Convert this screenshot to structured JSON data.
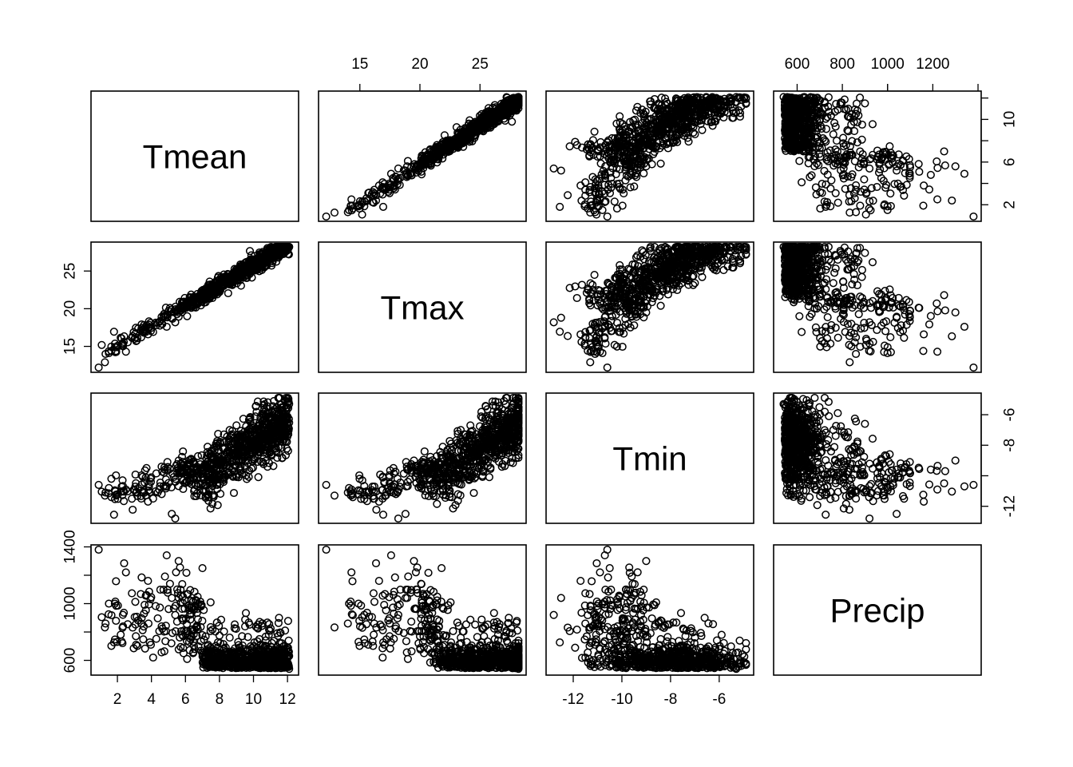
{
  "chart_data": {
    "type": "scatter",
    "kind": "scatterplot-matrix",
    "grid": false,
    "variables": [
      {
        "name": "Tmean",
        "range": [
          0.9,
          12.2
        ],
        "ticks": [
          2,
          4,
          6,
          8,
          10,
          12
        ]
      },
      {
        "name": "Tmax",
        "range": [
          12.2,
          28.2
        ],
        "ticks": [
          15,
          20,
          25
        ]
      },
      {
        "name": "Tmin",
        "range": [
          -12.8,
          -4.9
        ],
        "ticks": [
          -12,
          -10,
          -8,
          -6
        ]
      },
      {
        "name": "Precip",
        "range": [
          530,
          1380
        ],
        "ticks": [
          600,
          800,
          1000,
          1200
        ],
        "ticks_left": [
          600,
          1000,
          1400
        ]
      }
    ],
    "axis_placement": {
      "top_tick_labels": [
        "Tmax",
        "Precip"
      ],
      "bottom_tick_labels": [
        "Tmean",
        "Tmin"
      ],
      "left_tick_labels": [
        "Tmax",
        "Precip"
      ],
      "right_tick_labels": [
        "Tmean",
        "Tmin"
      ]
    },
    "ticks_right_tmean": [
      2,
      6,
      10
    ],
    "ticks_right_tmin": [
      -12,
      -8,
      -6
    ],
    "observations_sampled": [
      {
        "Tmean": 0.9,
        "Tmax": 12.2,
        "Tmin": -10.6,
        "Precip": 1380
      },
      {
        "Tmean": 1.3,
        "Tmax": 14.0,
        "Tmin": -11.1,
        "Precip": 860
      },
      {
        "Tmean": 1.5,
        "Tmax": 14.1,
        "Tmin": -10.8,
        "Precip": 1000
      },
      {
        "Tmean": 2.3,
        "Tmax": 15.2,
        "Tmin": -10.3,
        "Precip": 830
      },
      {
        "Tmean": 2.5,
        "Tmax": 14.3,
        "Tmin": -10.9,
        "Precip": 1220
      },
      {
        "Tmean": 3.1,
        "Tmax": 15.7,
        "Tmin": -11.1,
        "Precip": 710
      },
      {
        "Tmean": 3.4,
        "Tmax": 16.2,
        "Tmin": -11.5,
        "Precip": 860
      },
      {
        "Tmean": 3.8,
        "Tmax": 16.6,
        "Tmin": -11.7,
        "Precip": 1160
      },
      {
        "Tmean": 4.1,
        "Tmax": 16.9,
        "Tmin": -11.5,
        "Precip": 620
      },
      {
        "Tmean": 4.6,
        "Tmax": 18.0,
        "Tmin": -11.2,
        "Precip": 840
      },
      {
        "Tmean": 4.9,
        "Tmax": 17.6,
        "Tmin": -10.7,
        "Precip": 1340
      },
      {
        "Tmean": 5.2,
        "Tmax": 18.8,
        "Tmin": -12.5,
        "Precip": 1040
      },
      {
        "Tmean": 5.4,
        "Tmax": 18.2,
        "Tmin": -12.8,
        "Precip": 920
      },
      {
        "Tmean": 5.6,
        "Tmax": 19.5,
        "Tmin": -9.0,
        "Precip": 1300
      },
      {
        "Tmean": 5.8,
        "Tmax": 20.7,
        "Tmin": -9.8,
        "Precip": 780
      },
      {
        "Tmean": 6.1,
        "Tmax": 19.0,
        "Tmin": -10.4,
        "Precip": 610
      },
      {
        "Tmean": 6.5,
        "Tmax": 20.2,
        "Tmin": -9.2,
        "Precip": 980
      },
      {
        "Tmean": 7.0,
        "Tmax": 21.8,
        "Tmin": -10.5,
        "Precip": 1250
      },
      {
        "Tmean": 7.3,
        "Tmax": 21.9,
        "Tmin": -8.1,
        "Precip": 700
      },
      {
        "Tmean": 7.8,
        "Tmax": 22.6,
        "Tmin": -7.9,
        "Precip": 650
      },
      {
        "Tmean": 8.2,
        "Tmax": 23.0,
        "Tmin": -9.3,
        "Precip": 600
      },
      {
        "Tmean": 8.6,
        "Tmax": 23.4,
        "Tmin": -7.0,
        "Precip": 760
      },
      {
        "Tmean": 9.0,
        "Tmax": 24.2,
        "Tmin": -6.7,
        "Precip": 590
      },
      {
        "Tmean": 9.4,
        "Tmax": 24.7,
        "Tmin": -8.3,
        "Precip": 680
      },
      {
        "Tmean": 9.8,
        "Tmax": 25.2,
        "Tmin": -6.2,
        "Precip": 560
      },
      {
        "Tmean": 10.2,
        "Tmax": 25.5,
        "Tmin": -7.4,
        "Precip": 640
      },
      {
        "Tmean": 10.6,
        "Tmax": 26.1,
        "Tmin": -5.4,
        "Precip": 610
      },
      {
        "Tmean": 10.9,
        "Tmax": 26.5,
        "Tmin": -5.9,
        "Precip": 780
      },
      {
        "Tmean": 11.2,
        "Tmax": 27.0,
        "Tmin": -5.1,
        "Precip": 560
      },
      {
        "Tmean": 11.5,
        "Tmax": 27.4,
        "Tmin": -6.6,
        "Precip": 900
      },
      {
        "Tmean": 11.8,
        "Tmax": 27.9,
        "Tmin": -7.2,
        "Precip": 600
      },
      {
        "Tmean": 12.1,
        "Tmax": 28.2,
        "Tmin": -5.3,
        "Precip": 540
      }
    ],
    "total_observations_approx": 1000,
    "notes": "Points are an approximate sample; the original contains roughly a thousand overlapping points forming dense clusters (Tmean 7-12, Tmax 21-28, Tmin -9 to -5, Precip 530-750)."
  }
}
